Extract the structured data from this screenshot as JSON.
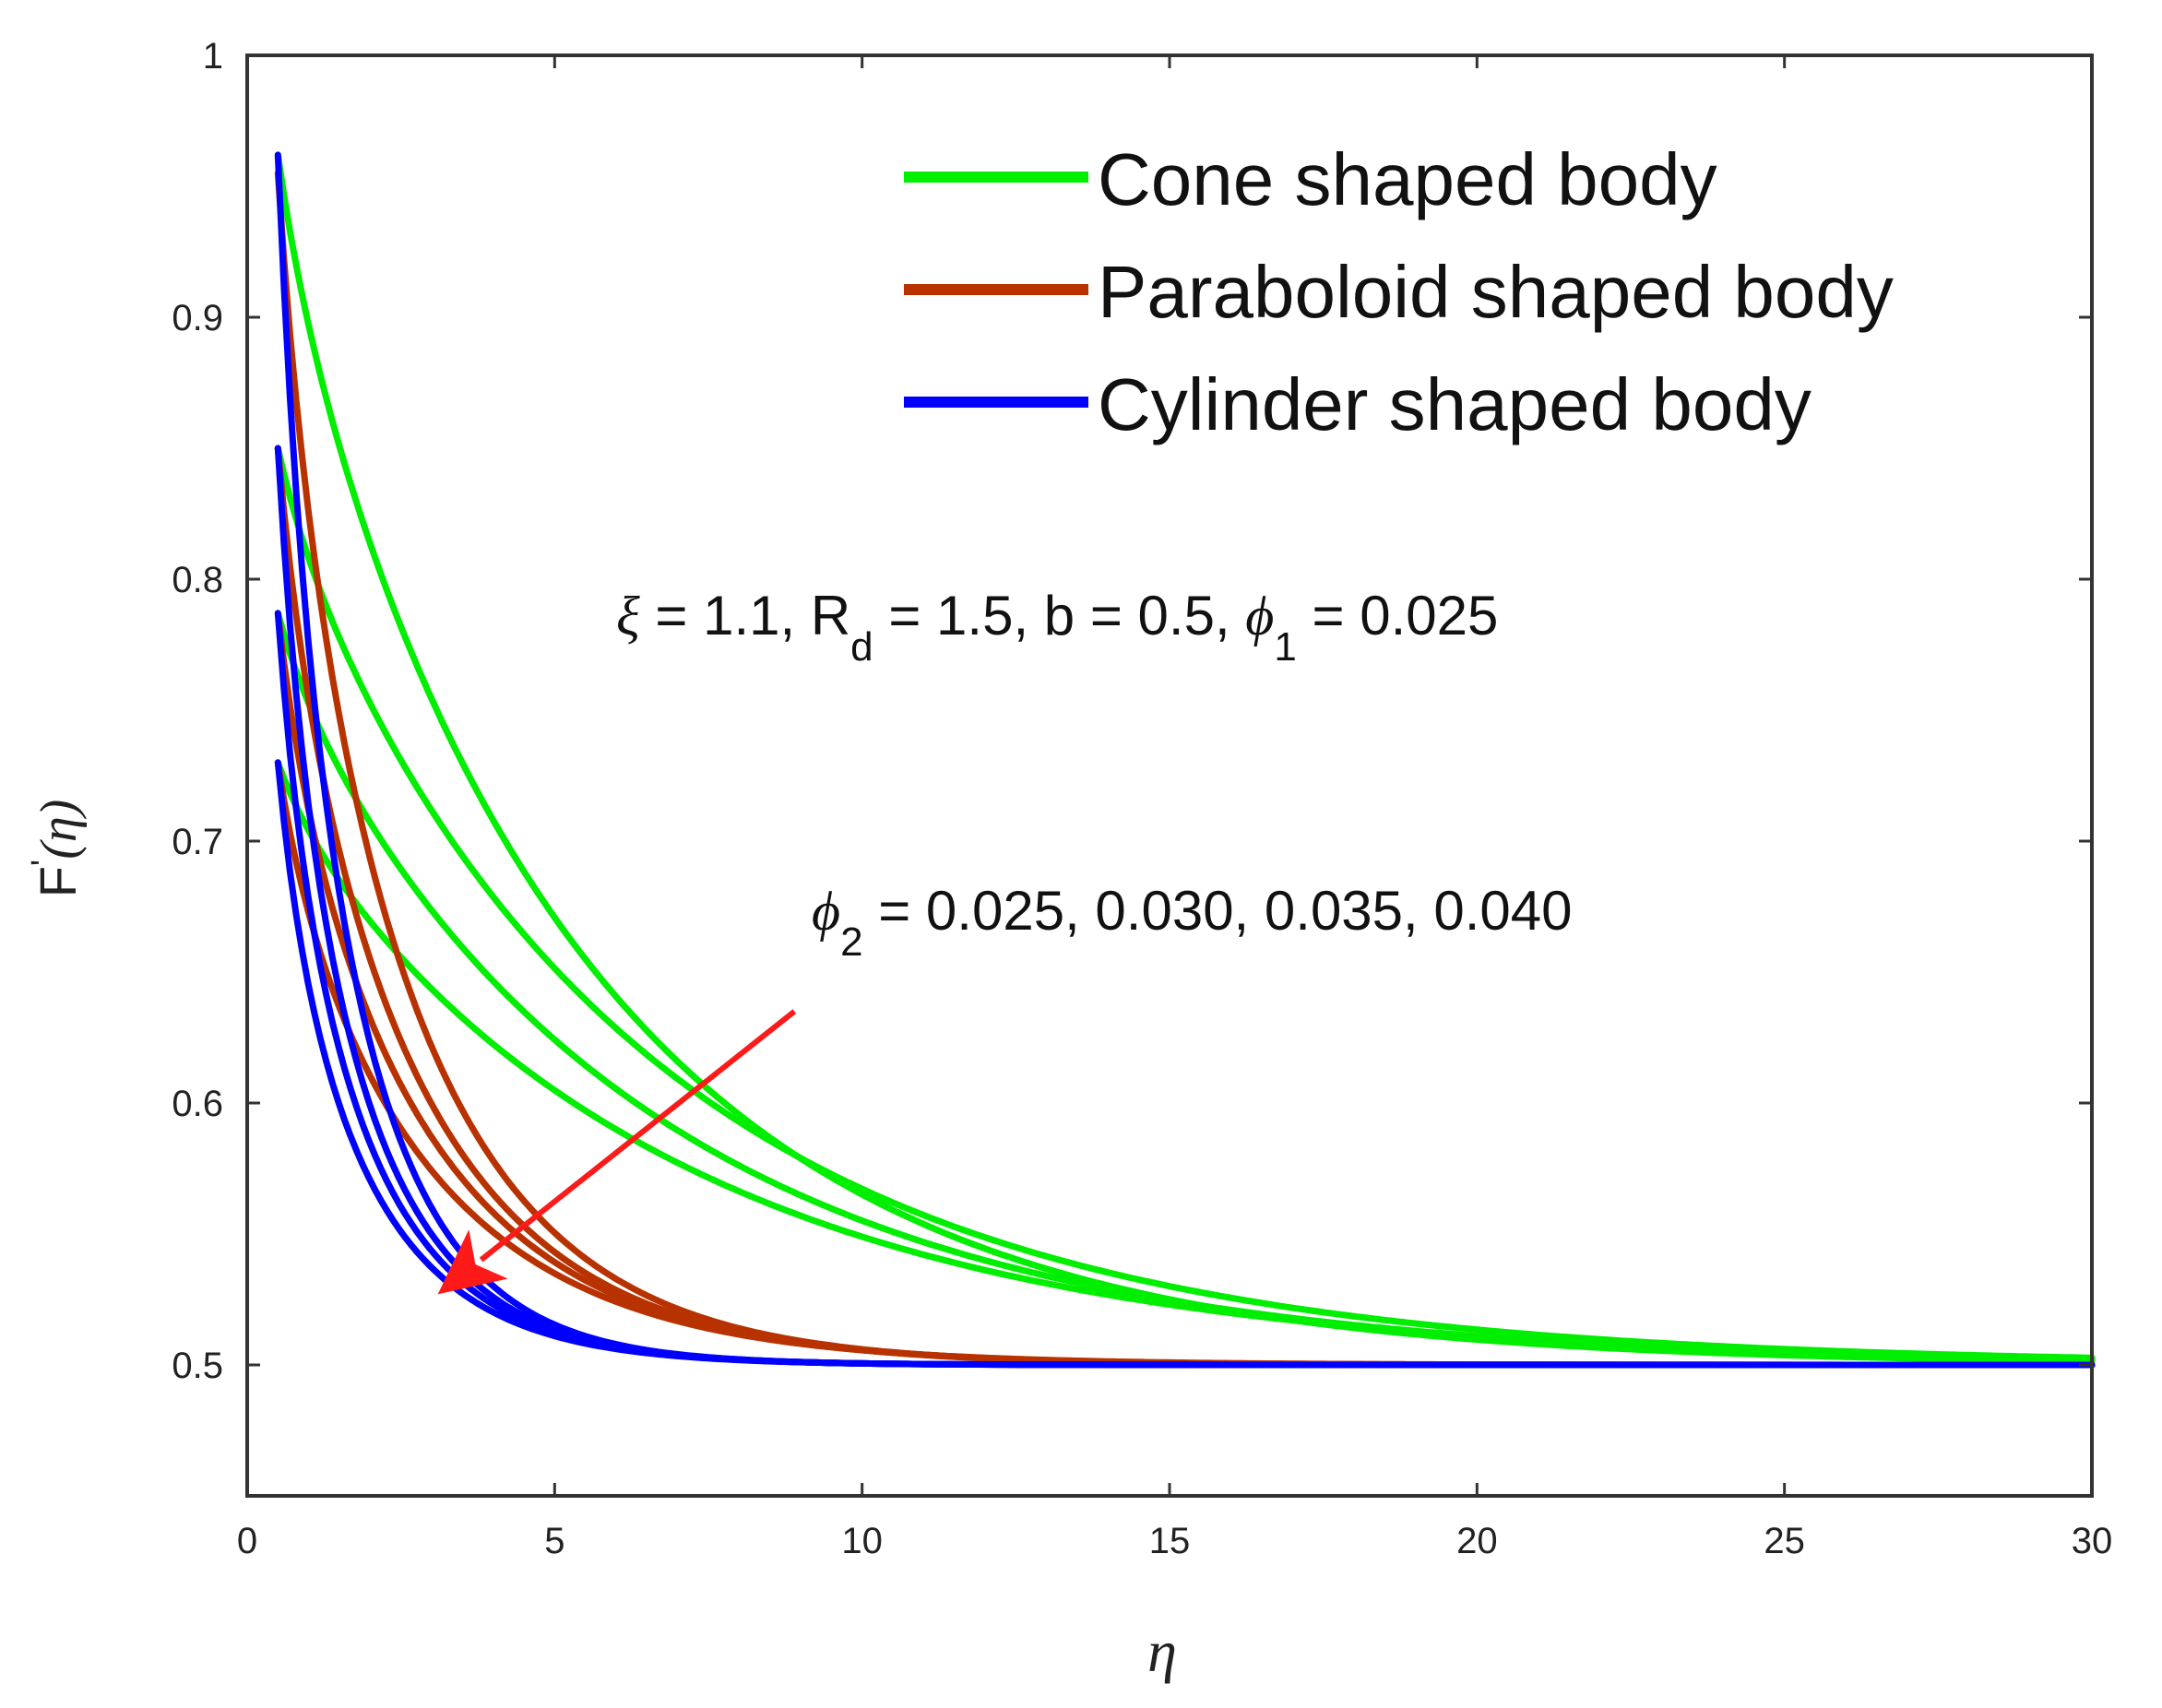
{
  "chart_data": {
    "type": "line",
    "title": "",
    "xlabel": "η",
    "ylabel": {
      "base": "F",
      "prime": "'",
      "arg": "(η)"
    },
    "xlim": [
      0,
      30
    ],
    "ylim": [
      0.45,
      1.0
    ],
    "x_ticks": [
      0,
      5,
      10,
      15,
      20,
      25,
      30
    ],
    "y_ticks": [
      0.5,
      0.6,
      0.7,
      0.8,
      0.9,
      1.0
    ],
    "x_tick_labels": [
      "0",
      "5",
      "10",
      "15",
      "20",
      "25",
      "30"
    ],
    "y_tick_labels": [
      "0.5",
      "0.6",
      "0.7",
      "0.8",
      "0.9",
      "1"
    ],
    "grid": false,
    "legend_position": "top-right",
    "legend": [
      {
        "label": "Cone shaped body",
        "color": "#00ee00"
      },
      {
        "label": "Paraboloid shaped body",
        "color": "#b83200"
      },
      {
        "label": "Cylinder shaped body",
        "color": "#0000ff"
      }
    ],
    "annotations": {
      "params_line": {
        "xi_sym": "ξ",
        "xi_text": " = 1.1, R",
        "rd_sub": "d",
        "rd_text": " = 1.5, b = 0.5, ",
        "phi1_sym": "ϕ",
        "phi1_sub": "1",
        "phi1_text": " = 0.025"
      },
      "phi2_line": {
        "phi2_sym": "ϕ",
        "phi2_sub": "2",
        "phi2_text": " = 0.025, 0.030, 0.035, 0.040"
      },
      "arrow": {
        "from": [
          8.9,
          0.635
        ],
        "to": [
          3.1,
          0.527
        ],
        "color": "#ff1a1a",
        "meaning": "increasing phi2"
      }
    },
    "x_start": 0.5,
    "x_end": 30,
    "asymptote": 0.5,
    "series": [
      {
        "group": "Cone shaped body",
        "phi2": 0.025,
        "color": "#00ee00",
        "y0": 0.962,
        "decay_rate": 0.19
      },
      {
        "group": "Cone shaped body",
        "phi2": 0.03,
        "color": "#00ee00",
        "y0": 0.85,
        "decay_rate": 0.16
      },
      {
        "group": "Cone shaped body",
        "phi2": 0.035,
        "color": "#00ee00",
        "y0": 0.787,
        "decay_rate": 0.16
      },
      {
        "group": "Cone shaped body",
        "phi2": 0.04,
        "color": "#00ee00",
        "y0": 0.73,
        "decay_rate": 0.15
      },
      {
        "group": "Paraboloid shaped body",
        "phi2": 0.025,
        "color": "#b83200",
        "y0": 0.955,
        "decay_rate": 0.42
      },
      {
        "group": "Paraboloid shaped body",
        "phi2": 0.03,
        "color": "#b83200",
        "y0": 0.85,
        "decay_rate": 0.4
      },
      {
        "group": "Paraboloid shaped body",
        "phi2": 0.035,
        "color": "#b83200",
        "y0": 0.787,
        "decay_rate": 0.38
      },
      {
        "group": "Paraboloid shaped body",
        "phi2": 0.04,
        "color": "#b83200",
        "y0": 0.73,
        "decay_rate": 0.36
      },
      {
        "group": "Cylinder shaped body",
        "phi2": 0.025,
        "color": "#0000ff",
        "y0": 0.962,
        "decay_rate": 0.65
      },
      {
        "group": "Cylinder shaped body",
        "phi2": 0.03,
        "color": "#0000ff",
        "y0": 0.85,
        "decay_rate": 0.62
      },
      {
        "group": "Cylinder shaped body",
        "phi2": 0.035,
        "color": "#0000ff",
        "y0": 0.787,
        "decay_rate": 0.6
      },
      {
        "group": "Cylinder shaped body",
        "phi2": 0.04,
        "color": "#0000ff",
        "y0": 0.73,
        "decay_rate": 0.58
      }
    ]
  }
}
